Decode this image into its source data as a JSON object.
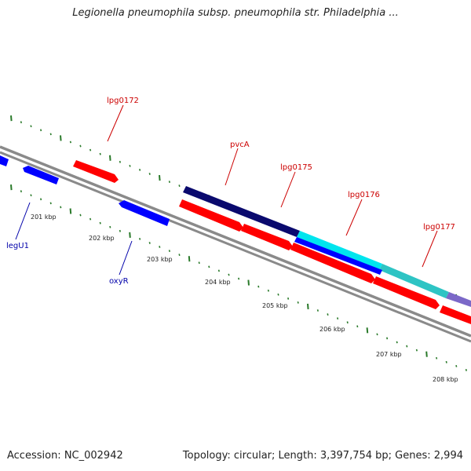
{
  "title": "Legionella pneumophila subsp. pneumophila str. Philadelphia ...",
  "footer": {
    "accession": "Accession: NC_002942",
    "topology": "Topology: circular; Length: 3,397,754 bp; Genes: 2,994"
  },
  "colors": {
    "backbone": "#808080",
    "forward_gene": "#ff0000",
    "reverse_gene": "#0000ff",
    "forward_label": "#cc0000",
    "reverse_label": "#0000aa",
    "ticks": "#2a7a2a",
    "pvcA_track": "#0a0a6e",
    "lpg0175_track": "#00e5ee",
    "lpg0176_track": "#2ec4c4",
    "lpg0177_track": "#7b68c8"
  },
  "scale_ticks": [
    "201 kbp",
    "202 kbp",
    "203 kbp",
    "204 kbp",
    "205 kbp",
    "206 kbp",
    "207 kbp",
    "208 kbp"
  ],
  "gene_labels": {
    "lpg0172": "lpg0172",
    "pvcA": "pvcA",
    "lpg0175": "lpg0175",
    "lpg0176": "lpg0176",
    "lpg0177": "lpg0177",
    "legU1": "legU1",
    "oxyR": "oxyR"
  }
}
